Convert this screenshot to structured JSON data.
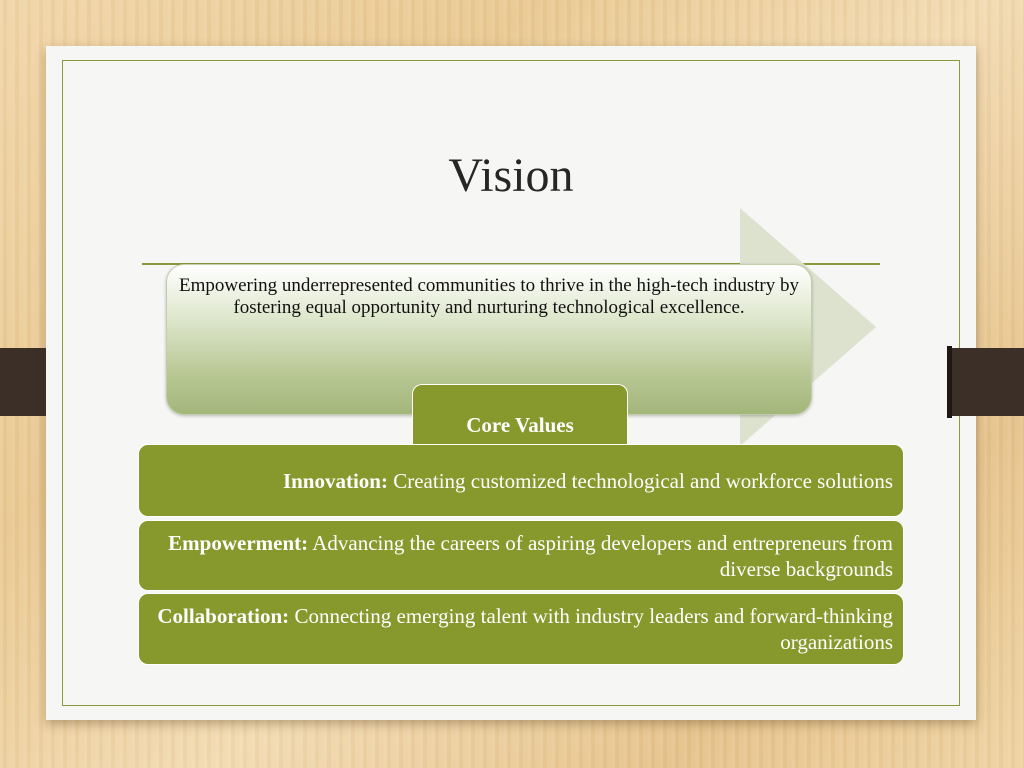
{
  "slide": {
    "title": "Vision",
    "vision_statement": "Empowering underrepresented communities to thrive in the high-tech industry by fostering equal opportunity and nurturing technological excellence.",
    "core_values_label": "Core Values",
    "values": [
      {
        "term": "Innovation:",
        "text": "Creating customized technological and workforce solutions"
      },
      {
        "term": "Empowerment:",
        "text": "Advancing the careers of aspiring developers and entrepreneurs from diverse backgrounds"
      },
      {
        "term": "Collaboration:",
        "text": "Connecting emerging talent with industry leaders and forward-thinking organizations"
      }
    ]
  },
  "colors": {
    "accent_green": "#87992d",
    "frame_green": "#8a9a3a",
    "slide_background": "#f6f6f4",
    "clip": "#3b2f28"
  },
  "icons": [
    "right-arrow-shape"
  ]
}
